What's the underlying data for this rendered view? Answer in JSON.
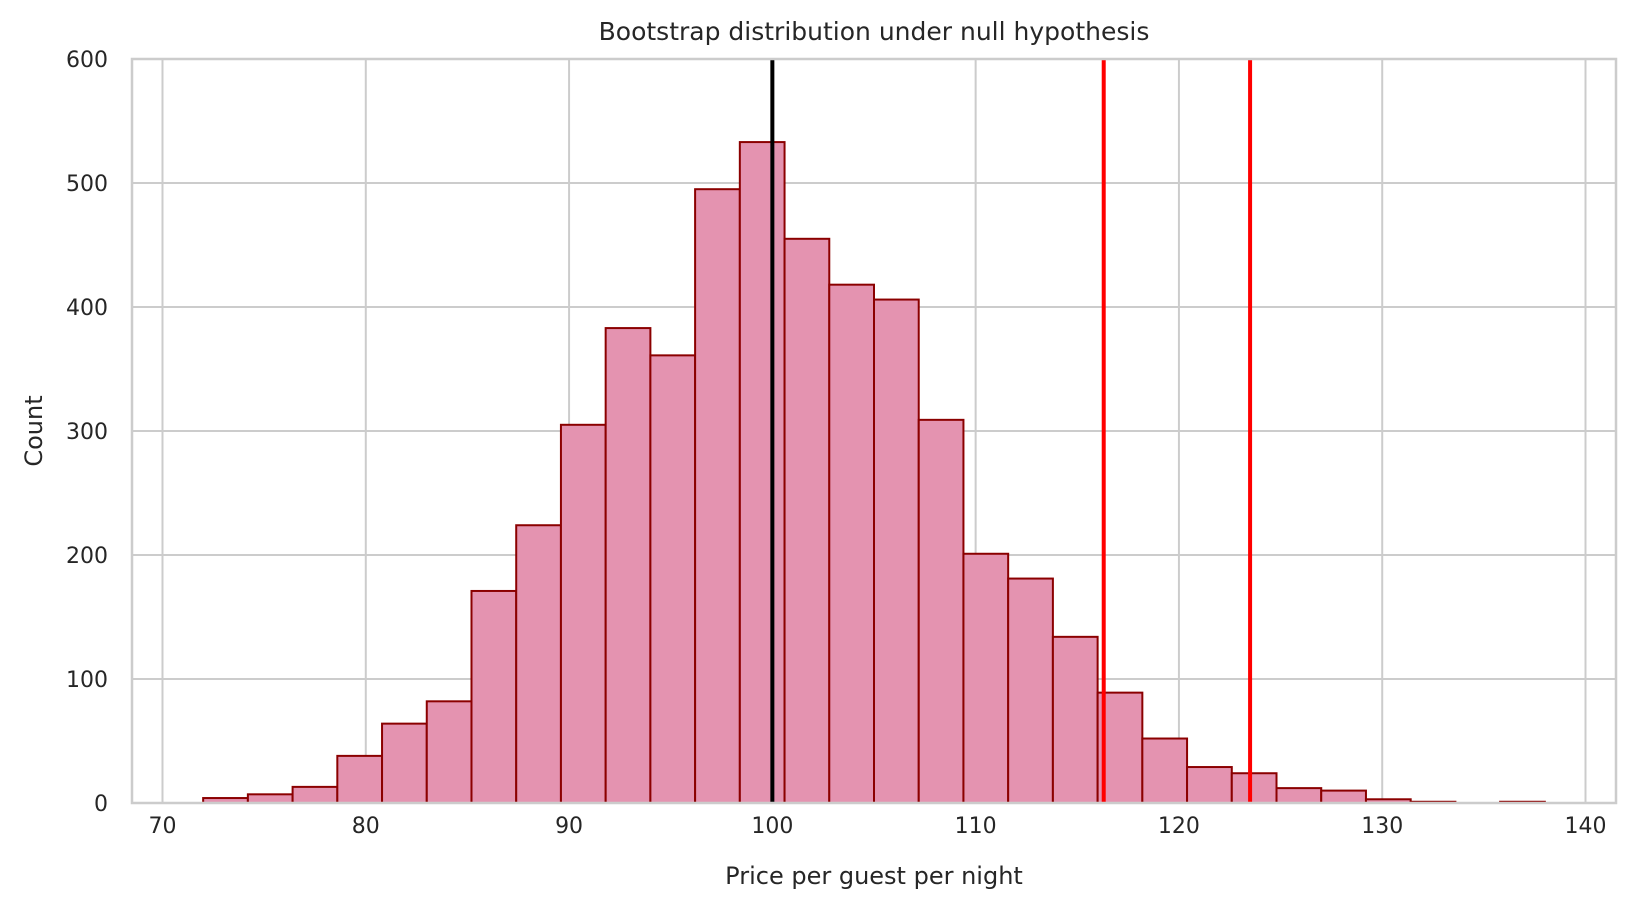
{
  "chart_data": {
    "type": "bar",
    "title": "Bootstrap distribution under null hypothesis",
    "xlabel": "Price per guest per night",
    "ylabel": "Count",
    "xlim": [
      68.5,
      141.5
    ],
    "ylim": [
      0,
      600
    ],
    "xticks": [
      70,
      80,
      90,
      100,
      110,
      120,
      130,
      140
    ],
    "yticks": [
      0,
      100,
      200,
      300,
      400,
      500,
      600
    ],
    "grid": true,
    "bin_edges": [
      72.0,
      74.2,
      76.4,
      78.6,
      80.8,
      83.0,
      85.2,
      87.4,
      89.6,
      91.8,
      94.0,
      96.2,
      98.4,
      100.6,
      102.8,
      105.0,
      107.2,
      109.4,
      111.6,
      113.8,
      116.0,
      118.2,
      120.4,
      122.6,
      124.8,
      127.0,
      129.2,
      131.4,
      133.6,
      135.8,
      138.0
    ],
    "counts": [
      4,
      7,
      13,
      38,
      64,
      82,
      171,
      224,
      305,
      383,
      361,
      495,
      533,
      455,
      418,
      406,
      309,
      201,
      181,
      134,
      89,
      52,
      29,
      24,
      12,
      10,
      3,
      1,
      0,
      1
    ],
    "vlines": [
      {
        "x": 100.0,
        "color": "#000000"
      },
      {
        "x": 116.3,
        "color": "#ff0000"
      },
      {
        "x": 123.5,
        "color": "#ff0000"
      }
    ],
    "bar_fill": "#e493b0",
    "bar_edge": "#8b0000"
  }
}
